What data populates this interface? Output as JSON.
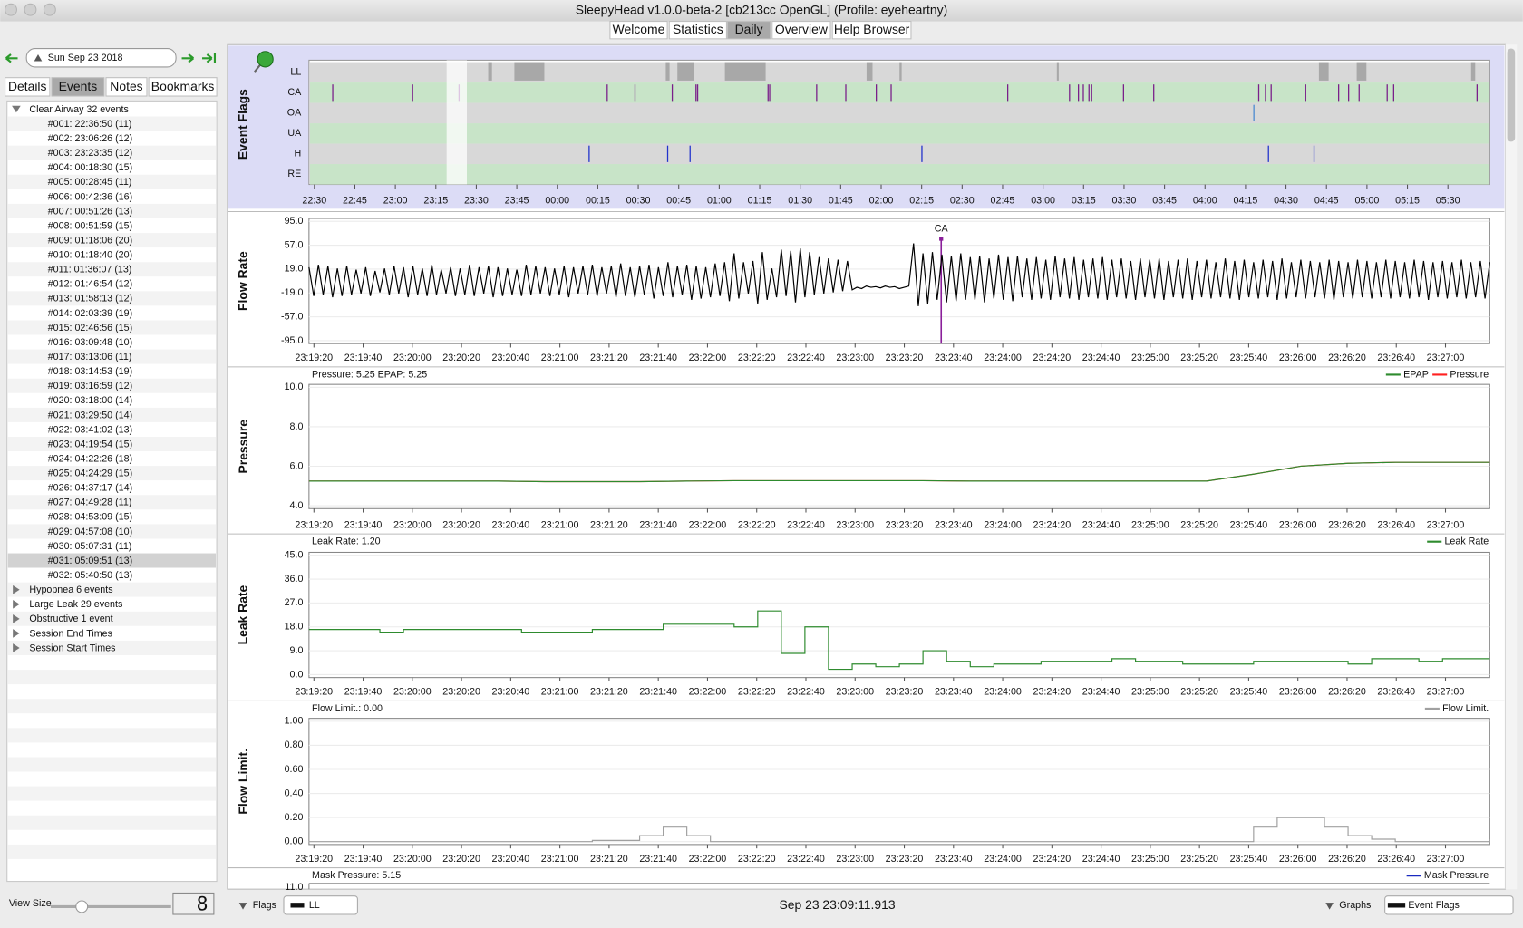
{
  "window": {
    "title": "SleepyHead v1.0.0-beta-2 [cb213cc OpenGL] (Profile: eyeheartny)"
  },
  "toolbar": {
    "tabs": [
      "Welcome",
      "Statistics",
      "Daily",
      "Overview",
      "Help Browser"
    ],
    "active": 2
  },
  "sidebar": {
    "date": "Sun Sep 23 2018",
    "tabs": [
      "Details",
      "Events",
      "Notes",
      "Bookmarks"
    ],
    "active_tab": 1,
    "groups": [
      {
        "label": "Clear Airway 32 events",
        "expanded": true,
        "items": [
          "#001: 22:36:50 (11)",
          "#002: 23:06:26 (12)",
          "#003: 23:23:35 (12)",
          "#004: 00:18:30 (15)",
          "#005: 00:28:45 (11)",
          "#006: 00:42:36 (16)",
          "#007: 00:51:26 (13)",
          "#008: 00:51:59 (15)",
          "#009: 01:18:06 (20)",
          "#010: 01:18:40 (20)",
          "#011: 01:36:07 (13)",
          "#012: 01:46:54 (12)",
          "#013: 01:58:13 (12)",
          "#014: 02:03:39 (19)",
          "#015: 02:46:56 (15)",
          "#016: 03:09:48 (10)",
          "#017: 03:13:06 (11)",
          "#018: 03:14:53 (19)",
          "#019: 03:16:59 (12)",
          "#020: 03:18:00 (14)",
          "#021: 03:29:50 (14)",
          "#022: 03:41:02 (13)",
          "#023: 04:19:54 (15)",
          "#024: 04:22:26 (18)",
          "#025: 04:24:29 (15)",
          "#026: 04:37:17 (14)",
          "#027: 04:49:28 (11)",
          "#028: 04:53:09 (15)",
          "#029: 04:57:08 (10)",
          "#030: 05:07:31 (11)",
          "#031: 05:09:51 (13)",
          "#032: 05:40:50 (13)"
        ]
      },
      {
        "label": "Hypopnea 6 events",
        "expanded": false
      },
      {
        "label": "Large Leak 29 events",
        "expanded": false
      },
      {
        "label": "Obstructive 1 event",
        "expanded": false
      },
      {
        "label": "Session End Times",
        "expanded": false
      },
      {
        "label": "Session Start Times",
        "expanded": false
      }
    ],
    "selected_item": 30,
    "view_size_label": "View Size",
    "view_size_value": "8"
  },
  "event_flags": {
    "title": "Event Flags",
    "xlim": [
      1348,
      1785.5
    ],
    "xticks": [
      {
        "value": 1350,
        "label": "22:30"
      },
      {
        "value": 1365,
        "label": "22:45"
      },
      {
        "value": 1380,
        "label": "23:00"
      },
      {
        "value": 1395,
        "label": "23:15"
      },
      {
        "value": 1410,
        "label": "23:30"
      },
      {
        "value": 1425,
        "label": "23:45"
      },
      {
        "value": 1440,
        "label": "00:00"
      },
      {
        "value": 1455,
        "label": "00:15"
      },
      {
        "value": 1470,
        "label": "00:30"
      },
      {
        "value": 1485,
        "label": "00:45"
      },
      {
        "value": 1500,
        "label": "01:00"
      },
      {
        "value": 1515,
        "label": "01:15"
      },
      {
        "value": 1530,
        "label": "01:30"
      },
      {
        "value": 1545,
        "label": "01:45"
      },
      {
        "value": 1560,
        "label": "02:00"
      },
      {
        "value": 1575,
        "label": "02:15"
      },
      {
        "value": 1590,
        "label": "02:30"
      },
      {
        "value": 1605,
        "label": "02:45"
      },
      {
        "value": 1620,
        "label": "03:00"
      },
      {
        "value": 1635,
        "label": "03:15"
      },
      {
        "value": 1650,
        "label": "03:30"
      },
      {
        "value": 1665,
        "label": "03:45"
      },
      {
        "value": 1680,
        "label": "04:00"
      },
      {
        "value": 1695,
        "label": "04:15"
      },
      {
        "value": 1710,
        "label": "04:30"
      },
      {
        "value": 1725,
        "label": "04:45"
      },
      {
        "value": 1740,
        "label": "05:00"
      },
      {
        "value": 1755,
        "label": "05:15"
      },
      {
        "value": 1770,
        "label": "05:30"
      }
    ],
    "selection": [
      1399,
      1406.5
    ],
    "rows": [
      {
        "label": "LL",
        "color": "#d8d8d8",
        "mark_color": "#a8a8a8",
        "spans": [
          [
            1414.4,
            1415.8
          ],
          [
            1424.1,
            1435.2
          ],
          [
            1480.2,
            1481.6
          ],
          [
            1484.5,
            1490.6
          ],
          [
            1502.1,
            1517.2
          ],
          [
            1554.6,
            1556.8
          ],
          [
            1566.8,
            1567.6
          ],
          [
            1625.1,
            1625.8
          ],
          [
            1722.2,
            1725.8
          ],
          [
            1736.2,
            1739.8
          ],
          [
            1778.6,
            1780.1
          ]
        ]
      },
      {
        "label": "CA",
        "color": "#c8e4c8",
        "mark_color": "#7a1f8a",
        "events": [
          1356.8,
          1386.4,
          1403.6,
          1458.5,
          1468.8,
          1482.6,
          1491.4,
          1492.0,
          1518.1,
          1518.7,
          1536.1,
          1546.9,
          1558.2,
          1563.7,
          1606.9,
          1629.8,
          1633.1,
          1634.9,
          1637.0,
          1638.0,
          1649.8,
          1661.0,
          1699.9,
          1702.4,
          1704.5,
          1717.3,
          1729.5,
          1733.2,
          1737.1,
          1747.5,
          1749.9,
          1780.8
        ]
      },
      {
        "label": "OA",
        "color": "#d8d8d8",
        "mark_color": "#4a8ad0",
        "events": [
          1698.1
        ]
      },
      {
        "label": "UA",
        "color": "#c8e4c8",
        "mark_color": "#4a4ac0",
        "events": []
      },
      {
        "label": "H",
        "color": "#d8d8d8",
        "mark_color": "#2233cc",
        "events": [
          1451.8,
          1480.9,
          1489.2,
          1575.1,
          1703.5,
          1720.4
        ]
      },
      {
        "label": "RE",
        "color": "#c8e4c8",
        "mark_color": "#aa6600",
        "events": []
      }
    ]
  },
  "detail_axis": {
    "xlim": [
      83958,
      84438
    ],
    "xticks": [
      {
        "value": 83960,
        "label": "23:19:20"
      },
      {
        "value": 83980,
        "label": "23:19:40"
      },
      {
        "value": 84000,
        "label": "23:20:00"
      },
      {
        "value": 84020,
        "label": "23:20:20"
      },
      {
        "value": 84040,
        "label": "23:20:40"
      },
      {
        "value": 84060,
        "label": "23:21:00"
      },
      {
        "value": 84080,
        "label": "23:21:20"
      },
      {
        "value": 84100,
        "label": "23:21:40"
      },
      {
        "value": 84120,
        "label": "23:22:00"
      },
      {
        "value": 84140,
        "label": "23:22:20"
      },
      {
        "value": 84160,
        "label": "23:22:40"
      },
      {
        "value": 84180,
        "label": "23:23:00"
      },
      {
        "value": 84200,
        "label": "23:23:20"
      },
      {
        "value": 84220,
        "label": "23:23:40"
      },
      {
        "value": 84240,
        "label": "23:24:00"
      },
      {
        "value": 84260,
        "label": "23:24:20"
      },
      {
        "value": 84280,
        "label": "23:24:40"
      },
      {
        "value": 84300,
        "label": "23:25:00"
      },
      {
        "value": 84320,
        "label": "23:25:20"
      },
      {
        "value": 84340,
        "label": "23:25:40"
      },
      {
        "value": 84360,
        "label": "23:26:00"
      },
      {
        "value": 84380,
        "label": "23:26:20"
      },
      {
        "value": 84400,
        "label": "23:26:40"
      },
      {
        "value": 84420,
        "label": "23:27:00"
      }
    ]
  },
  "graphs": [
    {
      "title": "Flow Rate",
      "step": false,
      "ylim": [
        -95,
        95
      ],
      "yticks": [
        {
          "value": 95,
          "label": "95.0"
        },
        {
          "value": 57,
          "label": "57.0"
        },
        {
          "value": 19,
          "label": "19.0"
        },
        {
          "value": -19,
          "label": "-19.0"
        },
        {
          "value": -57,
          "label": "-57.0"
        },
        {
          "value": -95,
          "label": "-95.0"
        }
      ],
      "annotation": {
        "label": "CA",
        "x": 84215,
        "color": "#8a1f9a"
      },
      "series": [
        {
          "color": "#000000",
          "values": [
            22,
            -24,
            26,
            -22,
            24,
            -26,
            20,
            -24,
            24,
            -22,
            18,
            -20,
            22,
            -24,
            16,
            -18,
            20,
            -22,
            24,
            -20,
            22,
            -26,
            24,
            -22,
            20,
            -24,
            26,
            -22,
            18,
            -20,
            22,
            -24,
            20,
            -22,
            26,
            -24,
            22,
            -20,
            24,
            -26,
            22,
            -24,
            20,
            -22,
            18,
            -24,
            26,
            -22,
            24,
            -20,
            22,
            -24,
            20,
            -22,
            24,
            -26,
            22,
            -20,
            24,
            -22,
            26,
            -24,
            22,
            -20,
            24,
            -26,
            28,
            -24,
            22,
            -26,
            24,
            -22,
            26,
            -28,
            22,
            -24,
            30,
            -26,
            24,
            -22,
            26,
            -30,
            24,
            -28,
            22,
            -26,
            28,
            -24,
            30,
            -32,
            44,
            -28,
            30,
            -20,
            32,
            -36,
            46,
            -30,
            20,
            -26,
            50,
            -24,
            48,
            -34,
            52,
            -26,
            46,
            -22,
            38,
            -20,
            36,
            -18,
            34,
            -16,
            32,
            -14,
            -10,
            -12,
            -8,
            -10,
            -9,
            -11,
            -8,
            -10,
            -9,
            -12,
            -10,
            -8,
            60,
            -40,
            44,
            -36,
            46,
            -30,
            42,
            -34,
            40,
            -32,
            44,
            -30,
            38,
            -30,
            40,
            -34,
            36,
            -28,
            42,
            -30,
            38,
            -32,
            40,
            -26,
            36,
            -30,
            38,
            -28,
            34,
            -30,
            40,
            -26,
            36,
            -28,
            38,
            -30,
            34,
            -26,
            36,
            -28,
            38,
            -30,
            34,
            -26,
            36,
            -28,
            32,
            -30,
            36,
            -26,
            34,
            -28,
            36,
            -30,
            32,
            -26,
            34,
            -28,
            36,
            -30,
            32,
            -26,
            34,
            -28,
            30,
            -26,
            36,
            -28,
            32,
            -30,
            34,
            -26,
            30,
            -28,
            34,
            -26,
            32,
            -30,
            36,
            -28,
            30,
            -26,
            34,
            -28,
            32,
            -26,
            30,
            -28,
            34,
            -30,
            32,
            -26,
            30,
            -28,
            34,
            -26,
            32,
            -28,
            30,
            -26,
            34,
            -28,
            32,
            -26,
            30,
            -28,
            34,
            -26,
            32,
            -30,
            30,
            -26,
            32,
            -28,
            30,
            -26,
            34,
            -28,
            30,
            -26,
            32,
            -28,
            30
          ]
        }
      ]
    },
    {
      "title": "Pressure",
      "header": "Pressure: 5.25 EPAP: 5.25",
      "step": false,
      "ylim": [
        4,
        10
      ],
      "yticks": [
        {
          "value": 10,
          "label": "10.0"
        },
        {
          "value": 8,
          "label": "8.0"
        },
        {
          "value": 6,
          "label": "6.0"
        },
        {
          "value": 4,
          "label": "4.0"
        }
      ],
      "series": [
        {
          "name": "EPAP",
          "color": "#2e8b2e",
          "values": [
            5.25,
            5.25,
            5.25,
            5.25,
            5.25,
            5.22,
            5.22,
            5.22,
            5.25,
            5.27,
            5.27,
            5.27,
            5.27,
            5.27,
            5.25,
            5.25,
            5.25,
            5.25,
            5.25,
            5.25,
            5.6,
            6.0,
            6.15,
            6.2,
            6.2,
            6.2
          ]
        },
        {
          "name": "Pressure",
          "color": "#ff2020",
          "values": [
            5.25,
            5.25,
            5.25,
            5.25,
            5.25,
            5.22,
            5.22,
            5.22,
            5.25,
            5.27,
            5.27,
            5.27,
            5.27,
            5.27,
            5.25,
            5.25,
            5.25,
            5.25,
            5.25,
            5.25,
            5.6,
            6.0,
            6.15,
            6.2,
            6.2,
            6.2
          ]
        }
      ]
    },
    {
      "title": "Leak Rate",
      "header": "Leak Rate: 1.20",
      "step": true,
      "ylim": [
        0,
        45
      ],
      "yticks": [
        {
          "value": 45,
          "label": "45.0"
        },
        {
          "value": 36,
          "label": "36.0"
        },
        {
          "value": 27,
          "label": "27.0"
        },
        {
          "value": 18,
          "label": "18.0"
        },
        {
          "value": 9,
          "label": "9.0"
        },
        {
          "value": 0,
          "label": "0.0"
        }
      ],
      "series": [
        {
          "name": "Leak Rate",
          "color": "#2e8b2e",
          "values": [
            17,
            17,
            17,
            16,
            17,
            17,
            17,
            17,
            17,
            16,
            16,
            16,
            17,
            17,
            17,
            19,
            19,
            19,
            18,
            24,
            8,
            18,
            2,
            4,
            3,
            4,
            9,
            5,
            3,
            4,
            4,
            5,
            5,
            5,
            6,
            5,
            5,
            4,
            4,
            4,
            5,
            5,
            5,
            5,
            4,
            6,
            6,
            5,
            6,
            6,
            6
          ]
        }
      ]
    },
    {
      "title": "Flow Limit.",
      "header": "Flow Limit.: 0.00",
      "step": true,
      "ylim": [
        0,
        1
      ],
      "yticks": [
        {
          "value": 1,
          "label": "1.00"
        },
        {
          "value": 0.8,
          "label": "0.80"
        },
        {
          "value": 0.6,
          "label": "0.60"
        },
        {
          "value": 0.4,
          "label": "0.40"
        },
        {
          "value": 0.2,
          "label": "0.20"
        },
        {
          "value": 0,
          "label": "0.00"
        }
      ],
      "series": [
        {
          "name": "Flow Limit.",
          "color": "#a0a0a0",
          "values": [
            0,
            0,
            0,
            0,
            0,
            0,
            0,
            0,
            0,
            0,
            0,
            0,
            0.01,
            0.01,
            0.05,
            0.12,
            0.05,
            0,
            0,
            0,
            0,
            0,
            0,
            0,
            0,
            0,
            0,
            0,
            0,
            0,
            0,
            0,
            0,
            0,
            0,
            0,
            0,
            0,
            0,
            0,
            0.12,
            0.2,
            0.2,
            0.12,
            0.05,
            0.02,
            0,
            0,
            0,
            0,
            0.02
          ]
        }
      ]
    },
    {
      "title": "Mask Pressure",
      "header": "Mask Pressure: 5.15",
      "partial": true,
      "yticks": [
        {
          "value": 11,
          "label": "11.0"
        }
      ],
      "series": [
        {
          "name": "Mask Pressure",
          "color": "#1a2ac0"
        }
      ]
    }
  ],
  "footer": {
    "flags_label": "Flags",
    "flags_value": "LL",
    "timestamp": "Sep 23 23:09:11.913",
    "graphs_label": "Graphs",
    "graphs_value": "Event Flags"
  }
}
